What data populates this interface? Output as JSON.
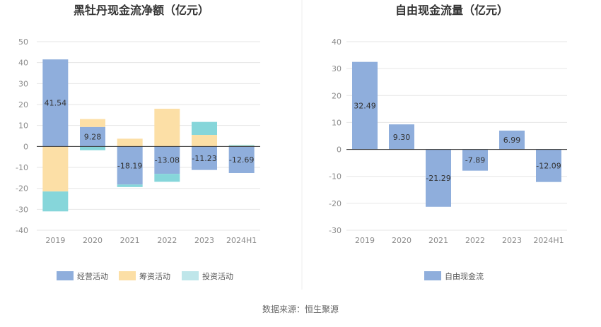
{
  "colors": {
    "operating": "#8FAEDC",
    "financing": "#FCDFA6",
    "investing": "#86D6DA",
    "free_cash_flow": "#8FAEDC",
    "grid": "#E6E6E6",
    "axis": "#333333",
    "divider": "#EEEEEE",
    "legend_investing": "#BFE6EA"
  },
  "chart_data": [
    {
      "type": "bar",
      "stacked": true,
      "title": "黑牡丹现金流净额（亿元）",
      "categories": [
        "2019",
        "2020",
        "2021",
        "2022",
        "2023",
        "2024H1"
      ],
      "ylim": [
        -40,
        50
      ],
      "yticks": [
        50,
        40,
        30,
        20,
        10,
        0,
        -10,
        -20,
        -30,
        -40
      ],
      "ytick_labels": [
        "50",
        "40",
        "30",
        "20",
        "10",
        "0",
        "-10",
        "-20",
        "-30",
        "-40"
      ],
      "series": [
        {
          "name": "经营活动",
          "key": "operating",
          "values": [
            41.54,
            9.28,
            -18.19,
            -13.08,
            -11.23,
            -12.69
          ],
          "labeled": true
        },
        {
          "name": "筹资活动",
          "key": "financing",
          "values": [
            -21.5,
            3.8,
            3.7,
            18.0,
            5.5,
            0.3
          ],
          "labeled": false
        },
        {
          "name": "投资活动",
          "key": "investing",
          "values": [
            -9.5,
            -1.8,
            -1.2,
            -3.8,
            6.2,
            0.4
          ],
          "labeled": false
        }
      ],
      "legend": [
        {
          "label": "经营活动",
          "key": "operating"
        },
        {
          "label": "筹资活动",
          "key": "financing"
        },
        {
          "label": "投资活动",
          "key": "legend_investing"
        }
      ],
      "legend_position": "bottom"
    },
    {
      "type": "bar",
      "stacked": false,
      "title": "自由现金流量（亿元）",
      "categories": [
        "2019",
        "2020",
        "2021",
        "2022",
        "2023",
        "2024H1"
      ],
      "ylim": [
        -30,
        40
      ],
      "yticks": [
        40,
        30,
        20,
        10,
        0,
        -10,
        -20,
        -30
      ],
      "ytick_labels": [
        "40",
        "30",
        "20",
        "10",
        "0",
        "-10",
        "-20",
        "-30"
      ],
      "series": [
        {
          "name": "自由现金流",
          "key": "free_cash_flow",
          "values": [
            32.49,
            9.3,
            -21.29,
            -7.89,
            6.99,
            -12.09
          ],
          "labeled": true
        }
      ],
      "value_labels": [
        "32.49",
        "9.30",
        "-21.29",
        "-7.89",
        "6.99",
        "-12.09"
      ],
      "legend": [
        {
          "label": "自由现金流",
          "key": "free_cash_flow"
        }
      ],
      "legend_position": "bottom"
    }
  ],
  "footer": {
    "source": "数据来源：恒生聚源"
  }
}
